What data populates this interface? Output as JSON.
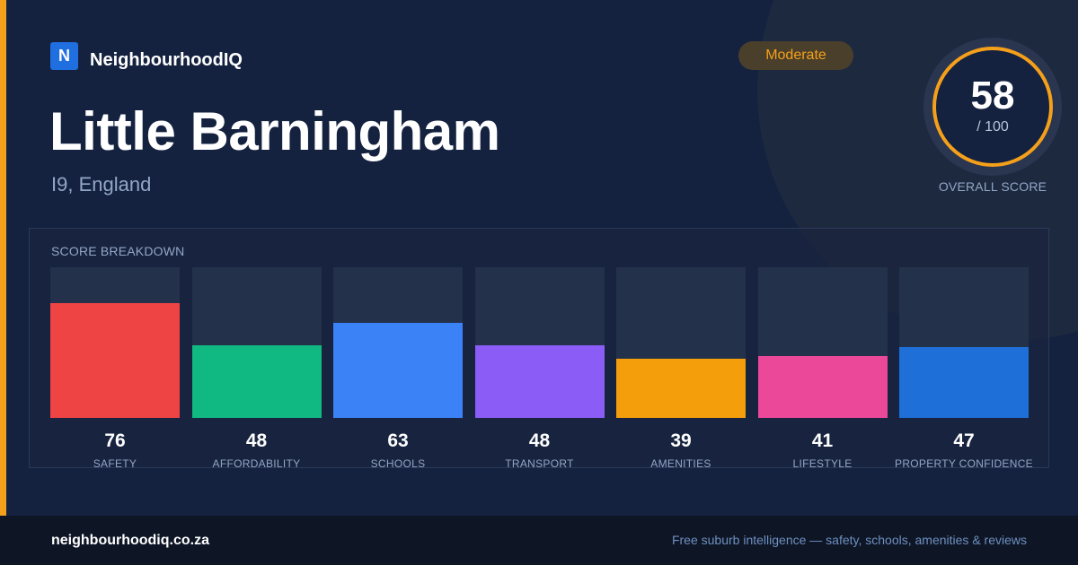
{
  "brand": {
    "logo_letter": "N",
    "name": "NeighbourhoodIQ"
  },
  "title": "Little Barningham",
  "subtitle": "I9, England",
  "rating": {
    "label": "Moderate",
    "color": "#f5a01a"
  },
  "overall": {
    "score": "58",
    "max": "/ 100",
    "caption": "OVERALL SCORE"
  },
  "breakdown_title": "SCORE BREAKDOWN",
  "chart_data": {
    "type": "bar",
    "categories": [
      "SAFETY",
      "AFFORDABILITY",
      "SCHOOLS",
      "TRANSPORT",
      "AMENITIES",
      "LIFESTYLE",
      "PROPERTY CONFIDENCE"
    ],
    "values": [
      76,
      48,
      63,
      48,
      39,
      41,
      47
    ],
    "value_labels": [
      "76",
      "48",
      "63",
      "48",
      "39",
      "41",
      "47"
    ],
    "colors": [
      "#ef4444",
      "#10b981",
      "#3b82f6",
      "#8b5cf6",
      "#f59e0b",
      "#ec4899",
      "#1f6fd8"
    ],
    "ylim": [
      0,
      100
    ]
  },
  "footer": {
    "url": "neighbourhoodiq.co.za",
    "tagline": "Free suburb intelligence — safety, schools, amenities & reviews"
  }
}
